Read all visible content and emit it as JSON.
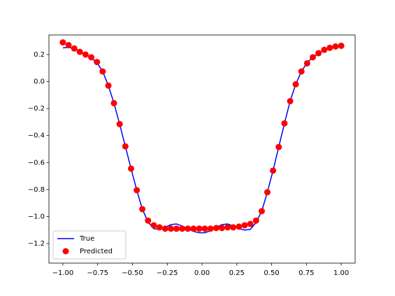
{
  "chart_data": {
    "type": "line",
    "x": [
      -1,
      -0.959,
      -0.918,
      -0.878,
      -0.837,
      -0.796,
      -0.755,
      -0.714,
      -0.673,
      -0.633,
      -0.592,
      -0.551,
      -0.51,
      -0.469,
      -0.429,
      -0.388,
      -0.347,
      -0.306,
      -0.265,
      -0.224,
      -0.184,
      -0.143,
      -0.102,
      -0.061,
      -0.02,
      0.02,
      0.061,
      0.102,
      0.143,
      0.184,
      0.224,
      0.265,
      0.306,
      0.347,
      0.388,
      0.429,
      0.469,
      0.51,
      0.551,
      0.592,
      0.633,
      0.673,
      0.714,
      0.755,
      0.796,
      0.837,
      0.878,
      0.918,
      0.959,
      1
    ],
    "series": [
      {
        "name": "True",
        "type": "line",
        "color": "#0000ff",
        "values": [
          0.25,
          0.253,
          0.245,
          0.225,
          0.2,
          0.175,
          0.14,
          0.075,
          -0.03,
          -0.16,
          -0.315,
          -0.48,
          -0.645,
          -0.805,
          -0.945,
          -1.04,
          -1.09,
          -1.095,
          -1.08,
          -1.06,
          -1.055,
          -1.07,
          -1.09,
          -1.11,
          -1.12,
          -1.12,
          -1.105,
          -1.08,
          -1.06,
          -1.055,
          -1.07,
          -1.09,
          -1.1,
          -1.095,
          -1.045,
          -0.96,
          -0.82,
          -0.66,
          -0.485,
          -0.31,
          -0.145,
          -0.02,
          0.075,
          0.14,
          0.18,
          0.21,
          0.235,
          0.25,
          0.258,
          0.262
        ]
      },
      {
        "name": "Predicted",
        "type": "scatter",
        "color": "#ff0000",
        "values": [
          0.29,
          0.27,
          0.245,
          0.22,
          0.2,
          0.18,
          0.145,
          0.075,
          -0.03,
          -0.16,
          -0.315,
          -0.48,
          -0.645,
          -0.805,
          -0.945,
          -1.03,
          -1.065,
          -1.08,
          -1.09,
          -1.09,
          -1.09,
          -1.09,
          -1.09,
          -1.09,
          -1.09,
          -1.09,
          -1.09,
          -1.085,
          -1.085,
          -1.08,
          -1.08,
          -1.075,
          -1.065,
          -1.055,
          -1.03,
          -0.96,
          -0.82,
          -0.66,
          -0.485,
          -0.31,
          -0.145,
          -0.02,
          0.075,
          0.135,
          0.18,
          0.21,
          0.235,
          0.25,
          0.26,
          0.265
        ]
      }
    ],
    "xlim": [
      -1.1,
      1.1
    ],
    "ylim": [
      -1.345,
      0.345
    ],
    "xticks": [
      {
        "value": -1,
        "label": "−1.00"
      },
      {
        "value": -0.75,
        "label": "−0.75"
      },
      {
        "value": -0.5,
        "label": "−0.50"
      },
      {
        "value": -0.25,
        "label": "−0.25"
      },
      {
        "value": 0,
        "label": "0.00"
      },
      {
        "value": 0.25,
        "label": "0.25"
      },
      {
        "value": 0.5,
        "label": "0.50"
      },
      {
        "value": 0.75,
        "label": "0.75"
      },
      {
        "value": 1,
        "label": "1.00"
      }
    ],
    "yticks": [
      0.2,
      {
        "value": 0,
        "label": "0.0"
      },
      {
        "value": -0.2,
        "label": "−0.2"
      },
      {
        "value": -0.4,
        "label": "−0.4"
      },
      {
        "value": -0.6,
        "label": "−0.6"
      },
      {
        "value": -0.8,
        "label": "−0.8"
      },
      {
        "value": -1,
        "label": "−1.0"
      },
      {
        "value": -1.2,
        "label": "−1.2"
      }
    ],
    "legend": "lower left",
    "grid": false
  }
}
